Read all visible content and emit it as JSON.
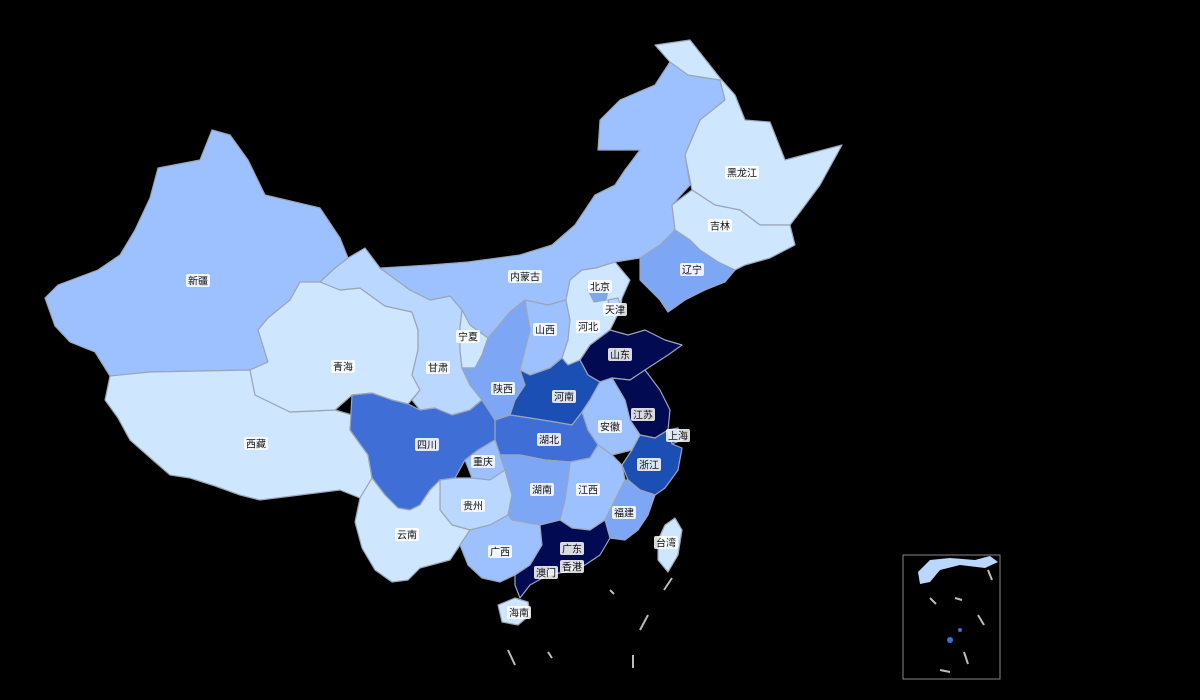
{
  "colors": {
    "background": "#000000",
    "level_0": "#cfe6ff",
    "level_1": "#b9d7ff",
    "level_2": "#9dc1ff",
    "level_3": "#7da6f5",
    "level_4": "#3f6fd6",
    "level_5": "#1c4fb3",
    "level_6": "#082a8a",
    "level_7": "#020b52"
  },
  "provinces": [
    {
      "name": "新疆",
      "level": 2
    },
    {
      "name": "西藏",
      "level": 0
    },
    {
      "name": "青海",
      "level": 0
    },
    {
      "name": "甘肃",
      "level": 1
    },
    {
      "name": "内蒙古",
      "level": 2
    },
    {
      "name": "黑龙江",
      "level": 0
    },
    {
      "name": "吉林",
      "level": 0
    },
    {
      "name": "辽宁",
      "level": 3
    },
    {
      "name": "宁夏",
      "level": 0
    },
    {
      "name": "陕西",
      "level": 3
    },
    {
      "name": "山西",
      "level": 2
    },
    {
      "name": "河北",
      "level": 0
    },
    {
      "name": "北京",
      "level": 3
    },
    {
      "name": "天津",
      "level": 1
    },
    {
      "name": "山东",
      "level": 7
    },
    {
      "name": "河南",
      "level": 5
    },
    {
      "name": "江苏",
      "level": 7
    },
    {
      "name": "安徽",
      "level": 2
    },
    {
      "name": "上海",
      "level": 5
    },
    {
      "name": "湖北",
      "level": 4
    },
    {
      "name": "四川",
      "level": 4
    },
    {
      "name": "重庆",
      "level": 2
    },
    {
      "name": "贵州",
      "level": 1
    },
    {
      "name": "云南",
      "level": 0
    },
    {
      "name": "湖南",
      "level": 3
    },
    {
      "name": "江西",
      "level": 2
    },
    {
      "name": "浙江",
      "level": 5
    },
    {
      "name": "福建",
      "level": 3
    },
    {
      "name": "广西",
      "level": 2
    },
    {
      "name": "广东",
      "level": 7
    },
    {
      "name": "香港",
      "level": 2
    },
    {
      "name": "澳门",
      "level": 4
    },
    {
      "name": "海南",
      "level": 0
    },
    {
      "name": "台湾",
      "level": 0
    }
  ]
}
